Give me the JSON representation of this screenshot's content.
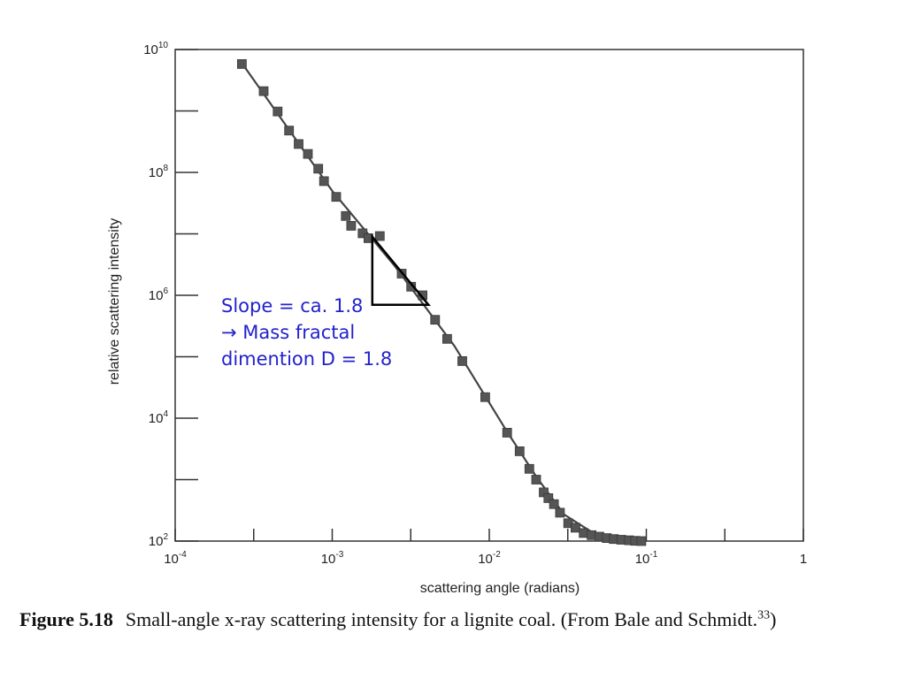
{
  "chart_data": {
    "type": "scatter",
    "xlabel": "scattering angle (radians)",
    "ylabel": "relative scattering intensity",
    "x_scale": "log",
    "y_scale": "log",
    "xlim": [
      0.0001,
      1
    ],
    "ylim": [
      100,
      10000000000
    ],
    "x_ticks": [
      {
        "value": 0.0001,
        "base": "10",
        "exp": "-4"
      },
      {
        "value": 0.001,
        "base": "10",
        "exp": "-3"
      },
      {
        "value": 0.01,
        "base": "10",
        "exp": "-2"
      },
      {
        "value": 0.1,
        "base": "10",
        "exp": "-1"
      },
      {
        "value": 1,
        "base": "1",
        "exp": ""
      }
    ],
    "y_ticks": [
      {
        "value": 100,
        "base": "10",
        "exp": "2"
      },
      {
        "value": 10000,
        "base": "10",
        "exp": "4"
      },
      {
        "value": 1000000,
        "base": "10",
        "exp": "6"
      },
      {
        "value": 100000000,
        "base": "10",
        "exp": "8"
      },
      {
        "value": 10000000000,
        "base": "10",
        "exp": "10"
      }
    ],
    "grid": false,
    "marker_color": "#555555",
    "line_color": "#444444",
    "points": [
      [
        0.000266,
        5800000000.0
      ],
      [
        0.000366,
        2100000000.0
      ],
      [
        0.000449,
        980000000.0
      ],
      [
        0.000531,
        480000000.0
      ],
      [
        0.000611,
        290000000.0
      ],
      [
        0.0007,
        200000000.0
      ],
      [
        0.000815,
        115000000.0
      ],
      [
        0.000886,
        72000000.0
      ],
      [
        0.00106,
        40000000.0
      ],
      [
        0.00122,
        19500000.0
      ],
      [
        0.00132,
        13500000.0
      ],
      [
        0.00156,
        10200000.0
      ],
      [
        0.0017,
        8500000.0
      ],
      [
        0.00201,
        9200000.0
      ],
      [
        0.00277,
        2250000.0
      ],
      [
        0.00318,
        1380000.0
      ],
      [
        0.00376,
        1000000.0
      ],
      [
        0.00452,
        400000.0
      ],
      [
        0.00539,
        195000.0
      ],
      [
        0.00673,
        85000.0
      ],
      [
        0.00942,
        22000.0
      ],
      [
        0.013,
        5800.0
      ],
      [
        0.0156,
        2900.0
      ],
      [
        0.018,
        1500.0
      ],
      [
        0.0199,
        1000.0
      ],
      [
        0.0222,
        620
      ],
      [
        0.0238,
        500
      ],
      [
        0.0258,
        400
      ],
      [
        0.0282,
        290
      ],
      [
        0.0318,
        195
      ],
      [
        0.0354,
        165
      ],
      [
        0.0399,
        135
      ],
      [
        0.0448,
        125
      ],
      [
        0.0502,
        118
      ],
      [
        0.056,
        112
      ],
      [
        0.0621,
        108
      ],
      [
        0.0693,
        105
      ],
      [
        0.0775,
        103
      ],
      [
        0.0849,
        101
      ],
      [
        0.093,
        100
      ]
    ],
    "fit_line": [
      [
        0.00026,
        6500000000.0
      ],
      [
        0.001,
        50000000.0
      ],
      [
        0.0025,
        3000000.0
      ],
      [
        0.006,
        150000.0
      ],
      [
        0.013,
        6000.0
      ],
      [
        0.02,
        1100.0
      ],
      [
        0.03,
        270
      ],
      [
        0.045,
        140
      ],
      [
        0.07,
        108
      ],
      [
        0.1,
        100
      ]
    ],
    "slope_triangle": [
      [
        0.0018,
        9000000.0
      ],
      [
        0.0018,
        700000.0
      ],
      [
        0.0041,
        700000.0
      ]
    ],
    "annotation": [
      "Slope = ca. 1.8",
      "→ Mass fractal",
      "dimention D = 1.8"
    ],
    "annotation_color": "#2222cc"
  },
  "caption": {
    "label": "Figure 5.18",
    "text": "Small-angle x-ray scattering intensity for a lignite coal. (From Bale and Schmidt.",
    "ref": "33",
    "tail": ")"
  }
}
